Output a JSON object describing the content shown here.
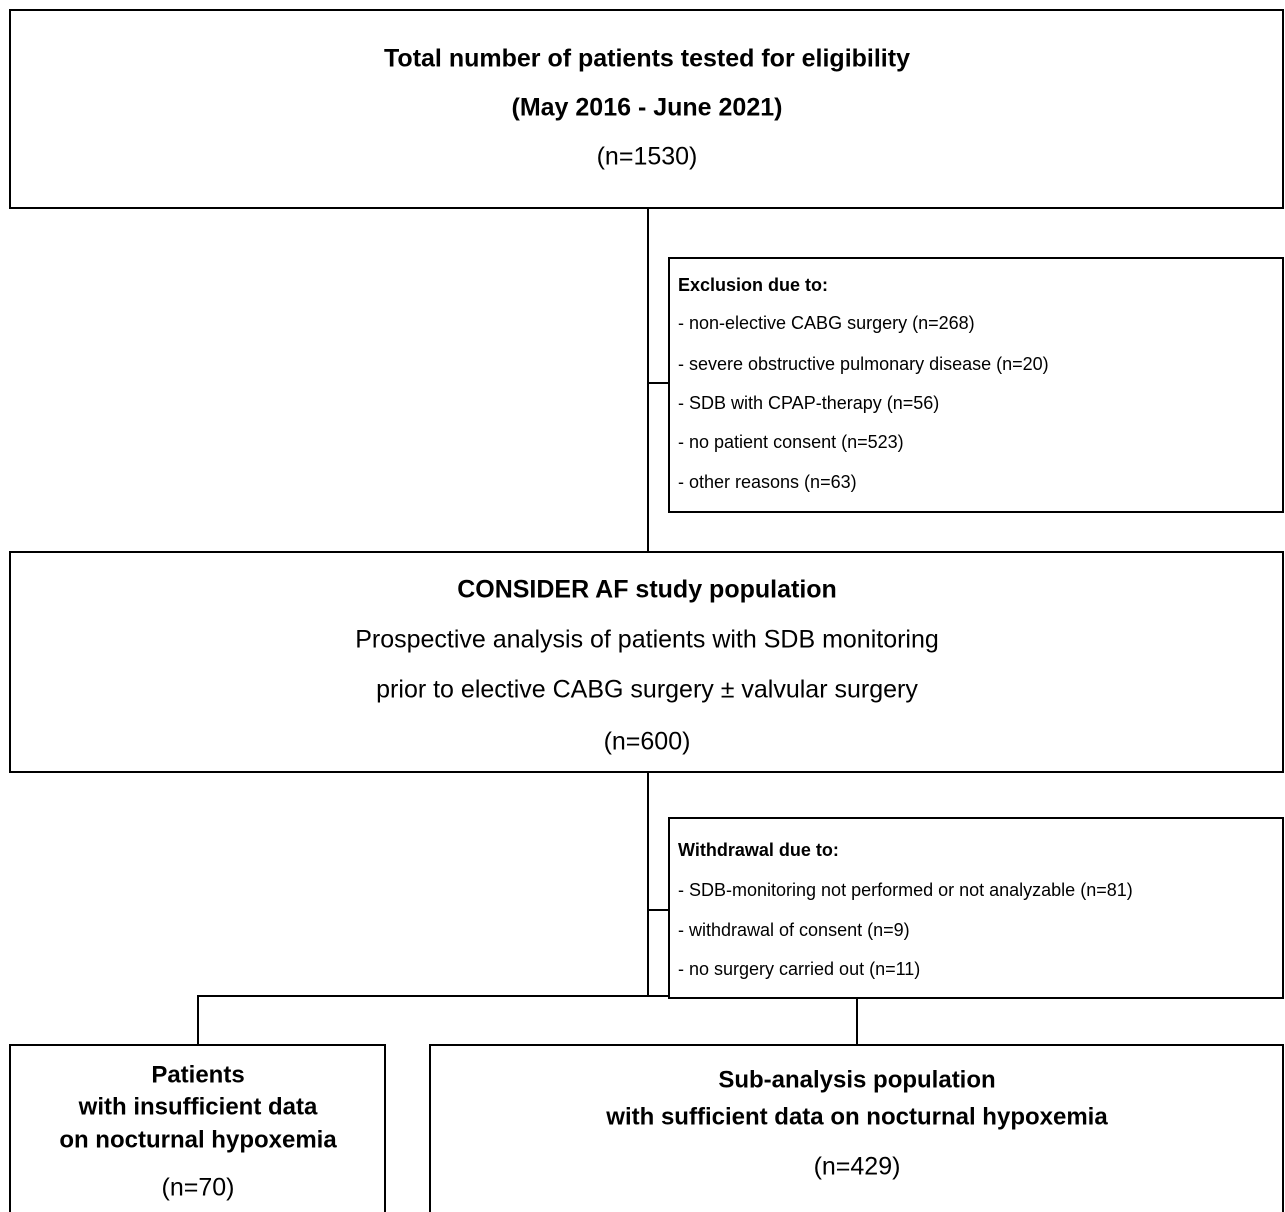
{
  "nodes": [
    {
      "title": [
        "Total number of patients tested for eligibility",
        "(May 2016 - June 2021)"
      ],
      "count": "(n=1530)"
    },
    {
      "title": [
        "Exclusion due to:"
      ],
      "items": [
        "- non-elective CABG surgery (n=268)",
        "- severe obstructive pulmonary disease (n=20)",
        "- SDB with CPAP-therapy (n=56)",
        "- no patient consent (n=523)",
        "- other reasons (n=63)"
      ]
    },
    {
      "title": [
        "CONSIDER AF study population"
      ],
      "items": [
        "Prospective analysis of patients with SDB monitoring",
        "prior to elective CABG surgery ± valvular surgery"
      ],
      "count": "(n=600)"
    },
    {
      "title": [
        "Withdrawal due to:"
      ],
      "items": [
        "- SDB-monitoring not performed or not analyzable (n=81)",
        "- withdrawal of consent (n=9)",
        "- no surgery carried out (n=11)"
      ]
    },
    {
      "title": [
        "Patients",
        "with insufficient data",
        "on nocturnal hypoxemia"
      ],
      "count": "(n=70)"
    },
    {
      "title": [
        "Sub-analysis population",
        "with sufficient data on nocturnal hypoxemia"
      ],
      "count": "(n=429)"
    }
  ]
}
